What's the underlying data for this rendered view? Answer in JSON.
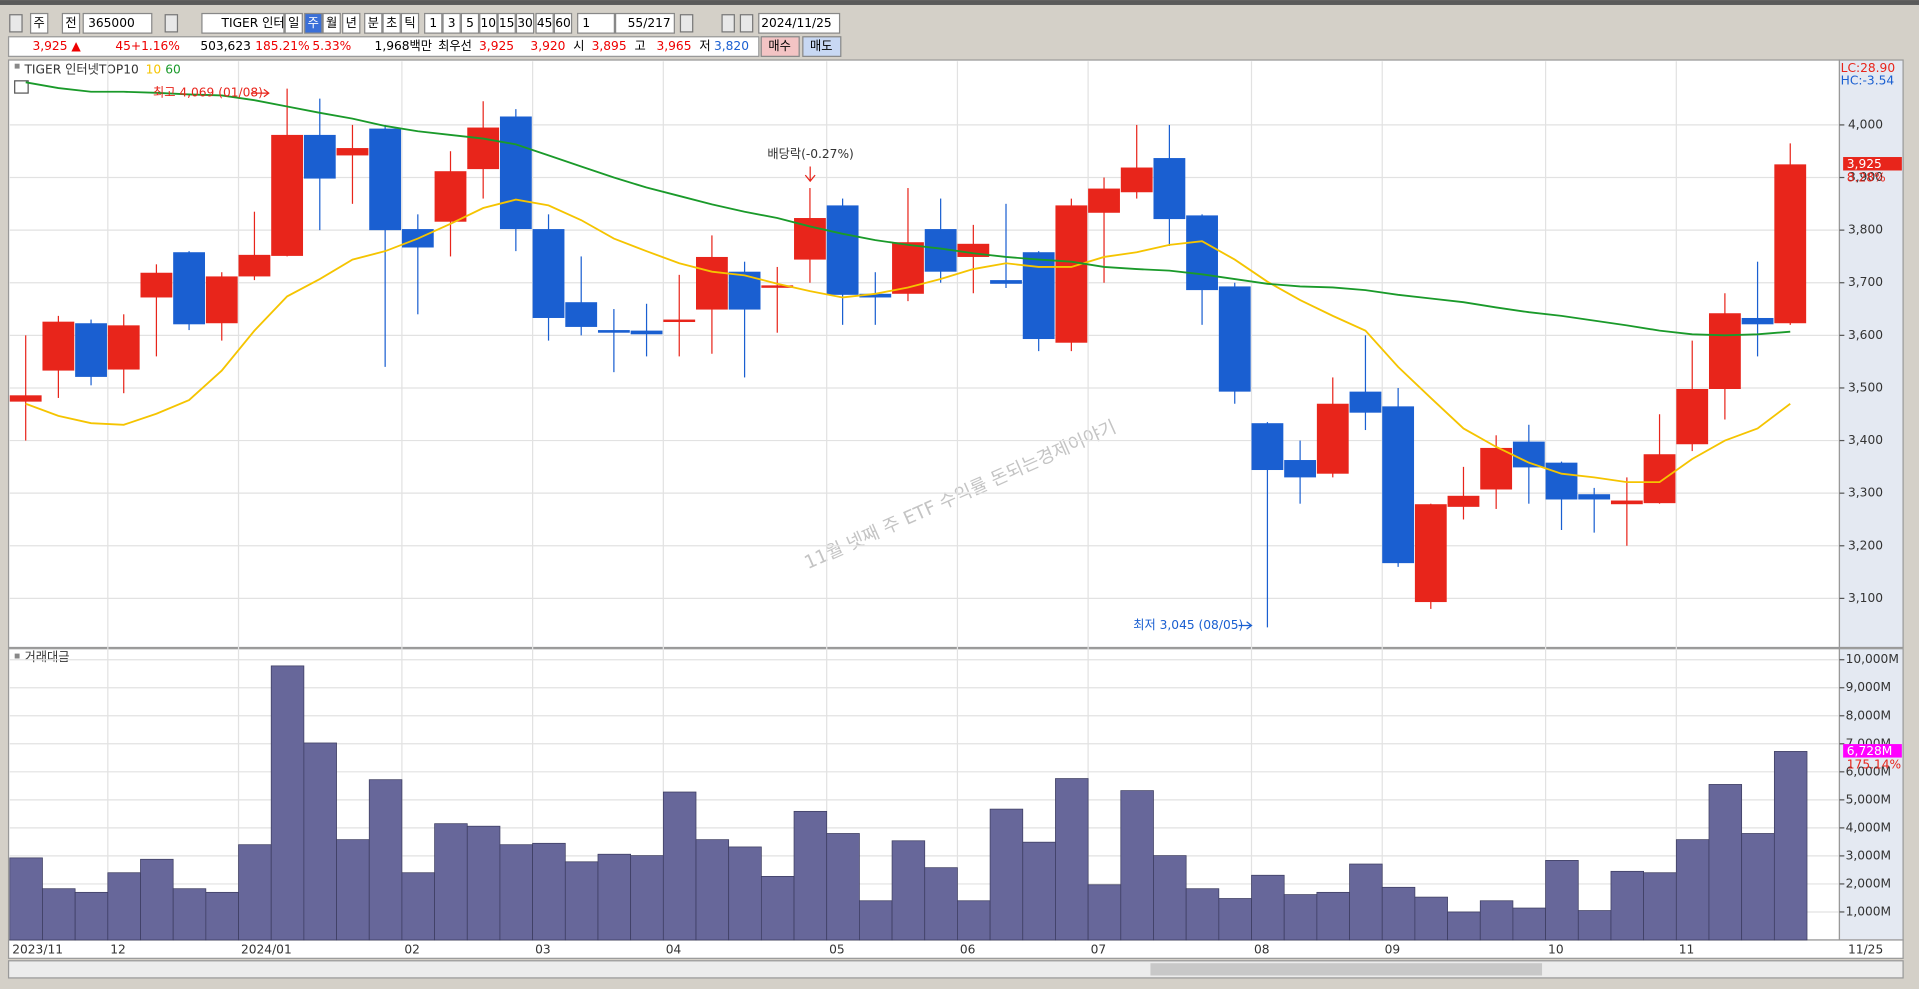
{
  "toolbar": [
    "주",
    "전",
    "365000",
    "TIGER 인터",
    "일",
    "주",
    "월",
    "년",
    "분",
    "초",
    "틱",
    "1",
    "3",
    "5",
    "10",
    "15",
    "30",
    "45",
    "60",
    "1",
    "55/217",
    "2024/11/25"
  ],
  "quote": [
    "3,925 ▲",
    "45",
    "+1.16%",
    "503,623",
    "185.21%",
    "5.33%",
    "1,968백만",
    "최우선",
    "3,925",
    "3,920",
    "시",
    "3,895",
    "고",
    "3,965",
    "저",
    "3,820",
    "매수",
    "매도"
  ],
  "chart_data": [
    {
      "type": "candlestick",
      "title": "TIGER 인터넷TOP10",
      "up_color": "#e8251b",
      "down_color": "#1a5fd1",
      "open": [
        3474,
        3533,
        3623,
        3535,
        3672,
        3758,
        3623,
        3712,
        3751,
        3981,
        3942,
        3993,
        3802,
        3816,
        3916,
        4016,
        3802,
        3663,
        3610,
        3609,
        3628,
        3649,
        3721,
        3691,
        3744,
        3847,
        3679,
        3679,
        3802,
        3749,
        3705,
        3758,
        3586,
        3833,
        3872,
        3937,
        3828,
        3693,
        3433,
        3363,
        3337,
        3493,
        3465,
        3093,
        3274,
        3307,
        3398,
        3358,
        3298,
        3279,
        3281,
        3393,
        3498,
        3633,
        3623
      ],
      "high": [
        3600,
        3637,
        3630,
        3640,
        3735,
        3760,
        3720,
        3835,
        4069,
        4050,
        4000,
        4000,
        3830,
        3950,
        4045,
        4030,
        3830,
        3750,
        3650,
        3660,
        3715,
        3790,
        3740,
        3730,
        3880,
        3860,
        3720,
        3880,
        3860,
        3810,
        3850,
        3760,
        3860,
        3900,
        4000,
        4000,
        3830,
        3700,
        3435,
        3400,
        3520,
        3600,
        3500,
        3280,
        3350,
        3410,
        3430,
        3360,
        3310,
        3330,
        3450,
        3590,
        3680,
        3740,
        3965
      ],
      "low": [
        3400,
        3481,
        3505,
        3490,
        3560,
        3610,
        3590,
        3705,
        3750,
        3800,
        3850,
        3540,
        3640,
        3750,
        3860,
        3760,
        3590,
        3600,
        3530,
        3560,
        3560,
        3565,
        3520,
        3605,
        3700,
        3620,
        3620,
        3665,
        3700,
        3680,
        3690,
        3570,
        3570,
        3700,
        3860,
        3770,
        3620,
        3470,
        3045,
        3280,
        3330,
        3420,
        3160,
        3080,
        3250,
        3270,
        3280,
        3230,
        3225,
        3200,
        3280,
        3380,
        3440,
        3560,
        3620
      ],
      "close": [
        3486,
        3626,
        3521,
        3619,
        3719,
        3621,
        3712,
        3753,
        3981,
        3898,
        3956,
        3800,
        3767,
        3912,
        3995,
        3802,
        3633,
        3616,
        3605,
        3602,
        3630,
        3749,
        3649,
        3695,
        3823,
        3677,
        3672,
        3777,
        3721,
        3774,
        3698,
        3593,
        3847,
        3879,
        3919,
        3821,
        3686,
        3493,
        3344,
        3330,
        3470,
        3453,
        3167,
        3279,
        3295,
        3386,
        3349,
        3288,
        3288,
        3286,
        3374,
        3498,
        3642,
        3621,
        3925
      ],
      "series": [
        {
          "name": "10",
          "color": "#f5c400",
          "values": [
            3470,
            3447,
            3433,
            3430,
            3451,
            3477,
            3533,
            3609,
            3674,
            3707,
            3744,
            3760,
            3784,
            3812,
            3842,
            3858,
            3847,
            3819,
            3784,
            3760,
            3737,
            3721,
            3714,
            3698,
            3684,
            3672,
            3679,
            3691,
            3707,
            3726,
            3737,
            3730,
            3730,
            3749,
            3758,
            3772,
            3779,
            3744,
            3702,
            3667,
            3637,
            3609,
            3540,
            3481,
            3423,
            3388,
            3358,
            3337,
            3330,
            3321,
            3321,
            3365,
            3400,
            3423,
            3470
          ]
        },
        {
          "name": "60",
          "color": "#1a9a2a",
          "values": [
            4081,
            4070,
            4063,
            4063,
            4061,
            4058,
            4056,
            4047,
            4035,
            4023,
            4012,
            3998,
            3988,
            3981,
            3974,
            3963,
            3942,
            3921,
            3900,
            3881,
            3865,
            3849,
            3835,
            3823,
            3807,
            3793,
            3781,
            3772,
            3765,
            3756,
            3749,
            3744,
            3740,
            3730,
            3726,
            3723,
            3716,
            3707,
            3698,
            3693,
            3691,
            3686,
            3677,
            3670,
            3663,
            3653,
            3644,
            3637,
            3628,
            3619,
            3609,
            3602,
            3600,
            3602,
            3607
          ]
        }
      ],
      "ylim": [
        3009,
        4121
      ],
      "yticks": [
        {
          "value": 3100,
          "label": "3,100"
        },
        {
          "value": 3200,
          "label": "3,200"
        },
        {
          "value": 3300,
          "label": "3,300"
        },
        {
          "value": 3400,
          "label": "3,400"
        },
        {
          "value": 3500,
          "label": "3,500"
        },
        {
          "value": 3600,
          "label": "3,600"
        },
        {
          "value": 3700,
          "label": "3,700"
        },
        {
          "value": 3800,
          "label": "3,800"
        },
        {
          "value": 3900,
          "label": "3,900"
        },
        {
          "value": 4000,
          "label": "4,000"
        }
      ],
      "grid": true,
      "lc_label": "LC:28.90",
      "hc_label": "HC:-3.54",
      "last_price_label": "3,925",
      "last_change_label": "8.28%",
      "annotations": [
        "최고 4,069 (01/08)",
        "배당락(-0.27%)",
        "최저 3,045 (08/05)"
      ],
      "watermark": "11월 넷째 주 ETF 수익률 돈되는경제이야기"
    },
    {
      "type": "bar",
      "title": "거래대금",
      "color": "#67679a",
      "categories": [
        "2023/11",
        null,
        null,
        "12",
        null,
        null,
        null,
        "2024/01",
        null,
        null,
        null,
        null,
        "02",
        null,
        null,
        null,
        "03",
        null,
        null,
        null,
        "04",
        null,
        null,
        null,
        null,
        "05",
        null,
        null,
        null,
        "06",
        null,
        null,
        null,
        "07",
        null,
        null,
        null,
        null,
        "08",
        null,
        null,
        null,
        "09",
        null,
        null,
        null,
        null,
        "10",
        null,
        null,
        null,
        "11",
        null,
        null,
        null
      ],
      "end_label": "11/25",
      "values": [
        2930,
        1830,
        1700,
        2400,
        2880,
        1830,
        1700,
        3400,
        9780,
        7030,
        3580,
        5720,
        2400,
        4150,
        4060,
        3400,
        3450,
        2790,
        3060,
        3010,
        5280,
        3580,
        3320,
        2270,
        4590,
        3800,
        1400,
        3540,
        2580,
        1400,
        4670,
        3490,
        5760,
        1970,
        5330,
        3010,
        1830,
        1480,
        2310,
        1620,
        1700,
        2710,
        1880,
        1530,
        1000,
        1400,
        1140,
        2840,
        1050,
        2450,
        2400,
        3580,
        5550,
        3800,
        6728
      ],
      "ylim": [
        0,
        10393
      ],
      "yticks": [
        {
          "value": 1000,
          "label": "1,000M"
        },
        {
          "value": 2000,
          "label": "2,000M"
        },
        {
          "value": 3000,
          "label": "3,000M"
        },
        {
          "value": 4000,
          "label": "4,000M"
        },
        {
          "value": 5000,
          "label": "5,000M"
        },
        {
          "value": 6000,
          "label": "6,000M"
        },
        {
          "value": 7000,
          "label": "7,000M"
        },
        {
          "value": 8000,
          "label": "8,000M"
        },
        {
          "value": 9000,
          "label": "9,000M"
        },
        {
          "value": 10000,
          "label": "10,000M"
        }
      ],
      "grid": true,
      "last_value_label": "6,728M",
      "last_change_label": "175.14%"
    }
  ]
}
